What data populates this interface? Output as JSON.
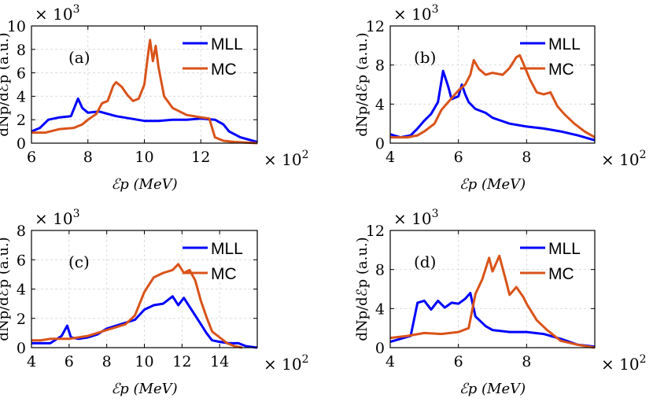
{
  "colors": {
    "mll": "#0000ff",
    "mc": "#d95319",
    "grid": "#dcdcdc"
  },
  "chart_data": [
    {
      "type": "line",
      "label": "(a)",
      "xlabel": "ℰp (MeV)",
      "ylabel": "dNp/dℰp (a.u.)",
      "x_multiplier": "× 10",
      "x_multiplier_exp": "2",
      "y_multiplier": "× 10",
      "y_multiplier_exp": "3",
      "xlim": [
        6,
        14
      ],
      "ylim": [
        0,
        10
      ],
      "xticks": [
        6,
        8,
        10,
        12
      ],
      "yticks": [
        0,
        2,
        4,
        6,
        8,
        10
      ],
      "legend": [
        "MLL",
        "MC"
      ],
      "series": [
        {
          "name": "MLL",
          "points": [
            [
              6,
              1.0
            ],
            [
              6.3,
              1.3
            ],
            [
              6.6,
              2.0
            ],
            [
              7.0,
              2.2
            ],
            [
              7.4,
              2.3
            ],
            [
              7.65,
              3.8
            ],
            [
              7.8,
              3.0
            ],
            [
              8.0,
              2.6
            ],
            [
              8.4,
              2.7
            ],
            [
              9.0,
              2.3
            ],
            [
              9.5,
              2.1
            ],
            [
              10.0,
              1.9
            ],
            [
              10.5,
              1.9
            ],
            [
              11.0,
              2.0
            ],
            [
              11.5,
              2.0
            ],
            [
              12.0,
              2.1
            ],
            [
              12.5,
              2.0
            ],
            [
              12.8,
              1.6
            ],
            [
              13.0,
              1.0
            ],
            [
              13.4,
              0.5
            ],
            [
              14.0,
              0.1
            ]
          ]
        },
        {
          "name": "MC",
          "points": [
            [
              6,
              0.9
            ],
            [
              6.5,
              0.9
            ],
            [
              7.0,
              1.2
            ],
            [
              7.5,
              1.3
            ],
            [
              7.8,
              1.6
            ],
            [
              8.0,
              2.0
            ],
            [
              8.3,
              2.5
            ],
            [
              8.5,
              3.4
            ],
            [
              8.7,
              3.6
            ],
            [
              8.9,
              4.9
            ],
            [
              9.0,
              5.2
            ],
            [
              9.2,
              4.8
            ],
            [
              9.4,
              4.1
            ],
            [
              9.6,
              3.6
            ],
            [
              9.8,
              3.8
            ],
            [
              10.0,
              5.0
            ],
            [
              10.1,
              7.0
            ],
            [
              10.2,
              8.8
            ],
            [
              10.3,
              7.0
            ],
            [
              10.4,
              8.3
            ],
            [
              10.5,
              6.5
            ],
            [
              10.7,
              4.0
            ],
            [
              11.0,
              3.0
            ],
            [
              11.5,
              2.4
            ],
            [
              12.0,
              2.2
            ],
            [
              12.3,
              2.1
            ],
            [
              12.5,
              0.5
            ],
            [
              12.8,
              0.2
            ],
            [
              13.2,
              0.1
            ],
            [
              14.0,
              0.0
            ]
          ]
        }
      ]
    },
    {
      "type": "line",
      "label": "(b)",
      "xlabel": "ℰp (MeV)",
      "ylabel": "dNp/dℰp (a.u.)",
      "x_multiplier": "× 10",
      "x_multiplier_exp": "2",
      "y_multiplier": "× 10",
      "y_multiplier_exp": "3",
      "xlim": [
        4,
        10
      ],
      "ylim": [
        0,
        12
      ],
      "xticks": [
        4,
        6,
        8
      ],
      "yticks": [
        0,
        4,
        8,
        12
      ],
      "legend": [
        "MLL",
        "MC"
      ],
      "series": [
        {
          "name": "MLL",
          "points": [
            [
              4,
              0.9
            ],
            [
              4.3,
              0.6
            ],
            [
              4.6,
              0.8
            ],
            [
              4.8,
              1.5
            ],
            [
              5.0,
              2.3
            ],
            [
              5.2,
              3.0
            ],
            [
              5.4,
              4.2
            ],
            [
              5.55,
              7.4
            ],
            [
              5.7,
              5.8
            ],
            [
              5.8,
              4.5
            ],
            [
              6.0,
              4.8
            ],
            [
              6.1,
              6.0
            ],
            [
              6.2,
              5.0
            ],
            [
              6.3,
              4.2
            ],
            [
              6.5,
              3.5
            ],
            [
              6.8,
              3.1
            ],
            [
              7.0,
              2.6
            ],
            [
              7.5,
              2.0
            ],
            [
              8.0,
              1.7
            ],
            [
              8.5,
              1.5
            ],
            [
              9.0,
              1.2
            ],
            [
              9.5,
              0.8
            ],
            [
              10.0,
              0.3
            ]
          ]
        },
        {
          "name": "MC",
          "points": [
            [
              4,
              0.6
            ],
            [
              4.5,
              0.6
            ],
            [
              4.8,
              0.8
            ],
            [
              5.0,
              1.2
            ],
            [
              5.3,
              2.0
            ],
            [
              5.5,
              3.4
            ],
            [
              5.8,
              4.6
            ],
            [
              6.0,
              5.4
            ],
            [
              6.2,
              6.0
            ],
            [
              6.35,
              7.0
            ],
            [
              6.45,
              8.5
            ],
            [
              6.6,
              7.6
            ],
            [
              6.8,
              7.0
            ],
            [
              7.0,
              7.2
            ],
            [
              7.3,
              7.0
            ],
            [
              7.5,
              7.7
            ],
            [
              7.7,
              8.8
            ],
            [
              7.8,
              9.0
            ],
            [
              7.9,
              8.2
            ],
            [
              8.1,
              6.5
            ],
            [
              8.3,
              5.2
            ],
            [
              8.5,
              5.0
            ],
            [
              8.7,
              5.2
            ],
            [
              8.9,
              3.8
            ],
            [
              9.1,
              3.0
            ],
            [
              9.4,
              2.0
            ],
            [
              9.7,
              1.2
            ],
            [
              10.0,
              0.6
            ]
          ]
        }
      ]
    },
    {
      "type": "line",
      "label": "(c)",
      "xlabel": "ℰp (MeV)",
      "ylabel": "dNp/dℰp (a.u.)",
      "x_multiplier": "× 10",
      "x_multiplier_exp": "2",
      "y_multiplier": "× 10",
      "y_multiplier_exp": "3",
      "xlim": [
        4,
        16
      ],
      "ylim": [
        0,
        8
      ],
      "xticks": [
        4,
        6,
        8,
        10,
        12,
        14
      ],
      "yticks": [
        0,
        2,
        4,
        6,
        8
      ],
      "legend": [
        "MLL",
        "MC"
      ],
      "series": [
        {
          "name": "MLL",
          "points": [
            [
              4,
              0.3
            ],
            [
              5.0,
              0.3
            ],
            [
              5.6,
              0.8
            ],
            [
              5.9,
              1.5
            ],
            [
              6.1,
              0.7
            ],
            [
              6.5,
              0.6
            ],
            [
              7.0,
              0.7
            ],
            [
              7.5,
              0.9
            ],
            [
              8.0,
              1.3
            ],
            [
              8.5,
              1.5
            ],
            [
              9.0,
              1.7
            ],
            [
              9.5,
              1.9
            ],
            [
              10.0,
              2.6
            ],
            [
              10.5,
              2.9
            ],
            [
              11.0,
              3.0
            ],
            [
              11.5,
              3.5
            ],
            [
              11.8,
              2.9
            ],
            [
              12.1,
              3.4
            ],
            [
              12.4,
              2.8
            ],
            [
              12.7,
              2.2
            ],
            [
              13.0,
              1.6
            ],
            [
              13.3,
              1.0
            ],
            [
              13.6,
              0.5
            ],
            [
              14.0,
              0.4
            ],
            [
              14.5,
              0.3
            ],
            [
              15.0,
              0.3
            ],
            [
              15.4,
              0.1
            ],
            [
              16.0,
              0.0
            ]
          ]
        },
        {
          "name": "MC",
          "points": [
            [
              4,
              0.5
            ],
            [
              4.5,
              0.5
            ],
            [
              5.0,
              0.6
            ],
            [
              6.0,
              0.6
            ],
            [
              7.0,
              0.8
            ],
            [
              8.0,
              1.2
            ],
            [
              8.5,
              1.4
            ],
            [
              9.0,
              1.6
            ],
            [
              9.5,
              2.2
            ],
            [
              10.0,
              3.8
            ],
            [
              10.5,
              4.8
            ],
            [
              11.0,
              5.1
            ],
            [
              11.5,
              5.3
            ],
            [
              11.8,
              5.7
            ],
            [
              12.1,
              5.1
            ],
            [
              12.4,
              5.3
            ],
            [
              12.7,
              4.6
            ],
            [
              13.0,
              3.2
            ],
            [
              13.3,
              2.1
            ],
            [
              13.6,
              1.1
            ],
            [
              14.0,
              0.7
            ],
            [
              14.4,
              0.3
            ],
            [
              14.8,
              0.1
            ],
            [
              15.2,
              0.0
            ]
          ]
        }
      ]
    },
    {
      "type": "line",
      "label": "(d)",
      "xlabel": "ℰp (MeV)",
      "ylabel": "dNp/dℰp (a.u.)",
      "x_multiplier": "× 10",
      "x_multiplier_exp": "2",
      "y_multiplier": "× 10",
      "y_multiplier_exp": "3",
      "xlim": [
        4,
        10
      ],
      "ylim": [
        0,
        12
      ],
      "xticks": [
        4,
        6,
        8
      ],
      "yticks": [
        0,
        4,
        8,
        12
      ],
      "legend": [
        "MLL",
        "MC"
      ],
      "series": [
        {
          "name": "MLL",
          "points": [
            [
              4,
              0.6
            ],
            [
              4.3,
              0.9
            ],
            [
              4.6,
              1.2
            ],
            [
              4.8,
              4.6
            ],
            [
              5.0,
              4.8
            ],
            [
              5.2,
              3.9
            ],
            [
              5.4,
              4.8
            ],
            [
              5.6,
              4.1
            ],
            [
              5.8,
              4.6
            ],
            [
              6.0,
              4.5
            ],
            [
              6.2,
              5.0
            ],
            [
              6.35,
              5.6
            ],
            [
              6.5,
              3.2
            ],
            [
              6.8,
              2.2
            ],
            [
              7.0,
              1.8
            ],
            [
              7.5,
              1.6
            ],
            [
              8.0,
              1.6
            ],
            [
              8.5,
              1.4
            ],
            [
              9.0,
              0.9
            ],
            [
              9.5,
              0.3
            ],
            [
              10.0,
              0.1
            ]
          ]
        },
        {
          "name": "MC",
          "points": [
            [
              4,
              1.0
            ],
            [
              4.5,
              1.2
            ],
            [
              5.0,
              1.5
            ],
            [
              5.5,
              1.4
            ],
            [
              6.0,
              1.6
            ],
            [
              6.3,
              2.0
            ],
            [
              6.5,
              5.5
            ],
            [
              6.7,
              7.0
            ],
            [
              6.9,
              9.2
            ],
            [
              7.0,
              7.8
            ],
            [
              7.2,
              9.4
            ],
            [
              7.4,
              6.8
            ],
            [
              7.5,
              5.4
            ],
            [
              7.7,
              6.2
            ],
            [
              7.9,
              5.2
            ],
            [
              8.0,
              4.5
            ],
            [
              8.3,
              2.8
            ],
            [
              8.6,
              1.8
            ],
            [
              9.0,
              0.7
            ],
            [
              9.5,
              0.3
            ],
            [
              10.0,
              0.0
            ]
          ]
        }
      ]
    }
  ]
}
